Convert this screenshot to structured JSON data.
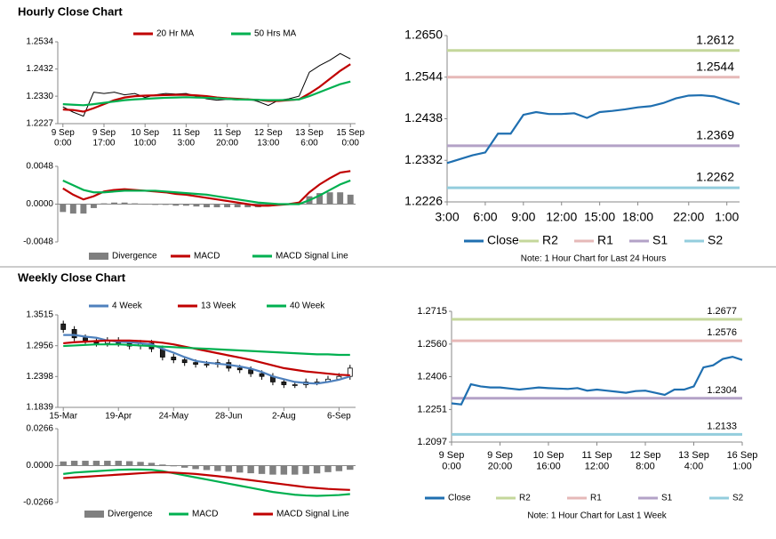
{
  "sections": [
    "Hourly Close Chart",
    "Weekly Close Chart"
  ],
  "chart_data": [
    {
      "type": "line",
      "legend": "top",
      "ylim": [
        1.2227,
        1.2534
      ],
      "yticks": [
        1.2227,
        {
          "value": 1.233,
          "label": "1.2330"
        },
        1.2432,
        1.2534
      ],
      "categories": [
        "9 Sep\n0:00",
        null,
        null,
        null,
        "9 Sep\n17:00",
        null,
        null,
        null,
        "10 Sep\n10:00",
        null,
        null,
        null,
        "11 Sep\n3:00",
        null,
        null,
        null,
        "11 Sep\n20:00",
        null,
        null,
        null,
        "12 Sep\n13:00",
        null,
        null,
        null,
        "13 Sep\n6:00",
        null,
        null,
        null,
        "15 Sep\n0:00"
      ],
      "series": [
        {
          "color": "#000000",
          "values": [
            1.229,
            1.227,
            1.2255,
            1.2345,
            1.234,
            1.2345,
            1.2335,
            1.234,
            1.2325,
            1.2335,
            1.234,
            1.2338,
            1.234,
            1.233,
            1.232,
            1.2315,
            1.2318,
            1.2316,
            1.232,
            1.231,
            1.2295,
            1.2315,
            1.232,
            1.233,
            1.242,
            1.2445,
            1.2465,
            1.249,
            1.247
          ]
        },
        {
          "name": "20 Hr MA",
          "color": "#c00000",
          "values": [
            1.228,
            1.2278,
            1.2272,
            1.2285,
            1.23,
            1.2315,
            1.2325,
            1.233,
            1.2332,
            1.2333,
            1.2334,
            1.2335,
            1.2335,
            1.2333,
            1.233,
            1.2325,
            1.2322,
            1.232,
            1.2318,
            1.2316,
            1.2312,
            1.2312,
            1.2315,
            1.2318,
            1.234,
            1.2365,
            1.2395,
            1.2425,
            1.245
          ]
        },
        {
          "name": "50 Hrs MA",
          "color": "#00b050",
          "values": [
            1.23,
            1.2298,
            1.2296,
            1.23,
            1.2305,
            1.231,
            1.2315,
            1.2318,
            1.232,
            1.2322,
            1.2324,
            1.2325,
            1.2326,
            1.2325,
            1.2324,
            1.2322,
            1.232,
            1.2318,
            1.2317,
            1.2316,
            1.2315,
            1.2315,
            1.2316,
            1.2318,
            1.233,
            1.2345,
            1.236,
            1.2375,
            1.2385
          ]
        }
      ]
    },
    {
      "type": "line",
      "legend": "bottom",
      "ylim": [
        -0.0048,
        0.0048
      ],
      "yticks": [
        -0.0048,
        {
          "value": 0,
          "label": "0.0000"
        },
        0.0048
      ],
      "series": [
        {
          "name": "Divergence",
          "type": "bar",
          "color": "#7f7f7f",
          "values": [
            -0.001,
            -0.0012,
            -0.0012,
            -0.0005,
            0.0001,
            0.0002,
            0.0002,
            0.0001,
            0,
            -0.0001,
            -0.0001,
            -0.0002,
            -0.0002,
            -0.0003,
            -0.0004,
            -0.0004,
            -0.0004,
            -0.0004,
            -0.0004,
            -0.0004,
            -0.0003,
            -0.0001,
            0,
            0.0002,
            0.001,
            0.0014,
            0.0015,
            0.0015,
            0.0012
          ]
        },
        {
          "name": "MACD",
          "color": "#c00000",
          "values": [
            0.002,
            0.0012,
            0.0006,
            0.001,
            0.0016,
            0.0018,
            0.0019,
            0.0018,
            0.0017,
            0.0016,
            0.0015,
            0.0013,
            0.0012,
            0.001,
            0.0008,
            0.0006,
            0.0004,
            0.0002,
            0,
            -0.0002,
            -0.0002,
            -0.0001,
            0,
            0.0002,
            0.0015,
            0.0025,
            0.0033,
            0.004,
            0.0042
          ]
        },
        {
          "name": "MACD Signal Line",
          "color": "#00b050",
          "values": [
            0.003,
            0.0024,
            0.0018,
            0.0015,
            0.0015,
            0.0016,
            0.0017,
            0.0017,
            0.0017,
            0.0017,
            0.0016,
            0.0015,
            0.0014,
            0.0013,
            0.0012,
            0.001,
            0.0008,
            0.0006,
            0.0004,
            0.0002,
            0.0001,
            0,
            0,
            0,
            0.0005,
            0.0011,
            0.0018,
            0.0025,
            0.003
          ]
        }
      ]
    },
    {
      "type": "line",
      "legend": "bottom",
      "note": "Note: 1 Hour Chart for Last 24 Hours",
      "ylim": [
        1.2226,
        1.265
      ],
      "yticks": [
        1.2226,
        1.2332,
        1.2438,
        1.2544,
        {
          "value": 1.265,
          "label": "1.2650"
        }
      ],
      "categories": [
        "3:00",
        null,
        null,
        "6:00",
        null,
        null,
        "9:00",
        null,
        null,
        "12:00",
        null,
        null,
        "15:00",
        null,
        null,
        "18:00",
        null,
        null,
        null,
        "22:00",
        null,
        null,
        "1:00",
        null
      ],
      "series": [
        {
          "name": "Close",
          "color": "#1f6fb0",
          "values": [
            1.2325,
            1.2335,
            1.2345,
            1.2352,
            1.24,
            1.24,
            1.2448,
            1.2455,
            1.245,
            1.245,
            1.2452,
            1.244,
            1.2455,
            1.2458,
            1.2462,
            1.2467,
            1.247,
            1.2478,
            1.249,
            1.2497,
            1.2498,
            1.2495,
            1.2485,
            1.2475
          ]
        }
      ],
      "levels": [
        {
          "name": "R2",
          "color": "#c4d79b",
          "value": 1.2612
        },
        {
          "name": "R1",
          "color": "#e6b9b8",
          "value": 1.2544
        },
        {
          "name": "S1",
          "color": "#b3a2c7",
          "value": 1.2369
        },
        {
          "name": "S2",
          "color": "#93cddd",
          "value": 1.2262
        }
      ]
    },
    {
      "type": "candlestick",
      "legend": "top",
      "ylim": [
        1.1839,
        1.3515
      ],
      "yticks": [
        1.1839,
        1.2398,
        1.2956,
        1.3515
      ],
      "categories": [
        "15-Mar",
        null,
        null,
        null,
        null,
        "19-Apr",
        null,
        null,
        null,
        null,
        "24-May",
        null,
        null,
        null,
        null,
        "28-Jun",
        null,
        null,
        null,
        null,
        "2-Aug",
        null,
        null,
        null,
        null,
        "6-Sep",
        null
      ],
      "candles": {
        "open": [
          1.335,
          1.325,
          1.31,
          1.305,
          1.3,
          1.305,
          1.3,
          1.295,
          1.3,
          1.29,
          1.275,
          1.27,
          1.265,
          1.262,
          1.262,
          1.265,
          1.255,
          1.252,
          1.245,
          1.24,
          1.23,
          1.225,
          1.225,
          1.23,
          1.23,
          1.235,
          1.24
        ],
        "high": [
          1.341,
          1.331,
          1.316,
          1.311,
          1.311,
          1.311,
          1.306,
          1.306,
          1.306,
          1.296,
          1.281,
          1.276,
          1.271,
          1.268,
          1.271,
          1.271,
          1.261,
          1.258,
          1.251,
          1.246,
          1.236,
          1.231,
          1.236,
          1.236,
          1.241,
          1.246,
          1.261
        ],
        "low": [
          1.319,
          1.304,
          1.299,
          1.294,
          1.294,
          1.294,
          1.289,
          1.289,
          1.284,
          1.269,
          1.264,
          1.259,
          1.256,
          1.256,
          1.256,
          1.249,
          1.246,
          1.239,
          1.234,
          1.224,
          1.219,
          1.219,
          1.219,
          1.224,
          1.229,
          1.234,
          1.234
        ],
        "close": [
          1.325,
          1.31,
          1.305,
          1.3,
          1.305,
          1.3,
          1.295,
          1.3,
          1.29,
          1.275,
          1.27,
          1.265,
          1.262,
          1.262,
          1.265,
          1.255,
          1.252,
          1.245,
          1.24,
          1.23,
          1.225,
          1.225,
          1.23,
          1.23,
          1.235,
          1.24,
          1.255
        ]
      },
      "series": [
        {
          "name": "4 Week",
          "color": "#4f81bd",
          "values": [
            1.315,
            1.315,
            1.312,
            1.31,
            1.305,
            1.303,
            1.302,
            1.3,
            1.298,
            1.29,
            1.283,
            1.275,
            1.268,
            1.265,
            1.263,
            1.261,
            1.258,
            1.254,
            1.248,
            1.24,
            1.235,
            1.23,
            1.228,
            1.227,
            1.23,
            1.234,
            1.24
          ]
        },
        {
          "name": "13 Week",
          "color": "#c00000",
          "values": [
            1.3,
            1.302,
            1.303,
            1.304,
            1.305,
            1.305,
            1.305,
            1.304,
            1.303,
            1.301,
            1.298,
            1.294,
            1.29,
            1.286,
            1.282,
            1.278,
            1.274,
            1.27,
            1.265,
            1.26,
            1.255,
            1.252,
            1.249,
            1.247,
            1.245,
            1.243,
            1.242
          ]
        },
        {
          "name": "40 Week",
          "color": "#00b050",
          "values": [
            1.295,
            1.296,
            1.297,
            1.298,
            1.298,
            1.298,
            1.297,
            1.296,
            1.295,
            1.294,
            1.293,
            1.292,
            1.291,
            1.29,
            1.289,
            1.288,
            1.287,
            1.286,
            1.285,
            1.284,
            1.283,
            1.282,
            1.281,
            1.28,
            1.28,
            1.279,
            1.279
          ]
        }
      ]
    },
    {
      "type": "line",
      "legend": "bottom",
      "ylim": [
        -0.0266,
        0.0266
      ],
      "yticks": [
        -0.0266,
        {
          "value": 0,
          "label": "0.0000"
        },
        0.0266
      ],
      "series": [
        {
          "name": "Divergence",
          "type": "bar",
          "color": "#808080",
          "values": [
            0.003,
            0.0035,
            0.0035,
            0.0035,
            0.0035,
            0.0035,
            0.0032,
            0.0027,
            0.002,
            0.0008,
            -0.0005,
            -0.0015,
            -0.0025,
            -0.0032,
            -0.0039,
            -0.0045,
            -0.005,
            -0.0055,
            -0.006,
            -0.0065,
            -0.0065,
            -0.0065,
            -0.006,
            -0.0056,
            -0.0047,
            -0.004,
            -0.003
          ]
        },
        {
          "name": "MACD",
          "color": "#00b050",
          "values": [
            -0.006,
            -0.005,
            -0.0045,
            -0.004,
            -0.0035,
            -0.003,
            -0.0028,
            -0.0028,
            -0.003,
            -0.004,
            -0.0055,
            -0.007,
            -0.0085,
            -0.01,
            -0.0115,
            -0.013,
            -0.0145,
            -0.016,
            -0.0175,
            -0.019,
            -0.02,
            -0.021,
            -0.0215,
            -0.0218,
            -0.0215,
            -0.0212,
            -0.0205
          ]
        },
        {
          "name": "MACD Signal Line",
          "color": "#c00000",
          "values": [
            -0.009,
            -0.0085,
            -0.008,
            -0.0075,
            -0.007,
            -0.0065,
            -0.006,
            -0.0055,
            -0.005,
            -0.0048,
            -0.005,
            -0.0055,
            -0.006,
            -0.0068,
            -0.0076,
            -0.0085,
            -0.0095,
            -0.0105,
            -0.0115,
            -0.0125,
            -0.0135,
            -0.0145,
            -0.0155,
            -0.0162,
            -0.0168,
            -0.0172,
            -0.0175
          ]
        }
      ]
    },
    {
      "type": "line",
      "legend": "bottom",
      "note": "Note: 1 Hour Chart for Last 1 Week",
      "ylim": [
        1.2097,
        1.2715
      ],
      "yticks": [
        1.2097,
        1.2251,
        1.2406,
        {
          "value": 1.256,
          "label": "1.2560"
        },
        1.2715
      ],
      "categories": [
        "9 Sep\n0:00",
        null,
        null,
        null,
        null,
        "9 Sep\n20:00",
        null,
        null,
        null,
        null,
        "10 Sep\n16:00",
        null,
        null,
        null,
        null,
        "11 Sep\n12:00",
        null,
        null,
        null,
        null,
        "12 Sep\n8:00",
        null,
        null,
        null,
        null,
        "13 Sep\n4:00",
        null,
        null,
        null,
        null,
        "16 Sep\n1:00"
      ],
      "series": [
        {
          "name": "Close",
          "color": "#1f6fb0",
          "values": [
            1.228,
            1.2275,
            1.237,
            1.236,
            1.2355,
            1.2355,
            1.235,
            1.2345,
            1.235,
            1.2355,
            1.2352,
            1.235,
            1.2348,
            1.2352,
            1.234,
            1.2345,
            1.234,
            1.2335,
            1.233,
            1.2338,
            1.234,
            1.233,
            1.232,
            1.2345,
            1.2345,
            1.236,
            1.245,
            1.246,
            1.249,
            1.25,
            1.2485
          ]
        }
      ],
      "levels": [
        {
          "name": "R2",
          "color": "#c4d79b",
          "value": 1.2677
        },
        {
          "name": "R1",
          "color": "#e6b9b8",
          "value": 1.2576
        },
        {
          "name": "S1",
          "color": "#b3a2c7",
          "value": 1.2304
        },
        {
          "name": "S2",
          "color": "#93cddd",
          "value": 1.2133
        }
      ]
    }
  ]
}
